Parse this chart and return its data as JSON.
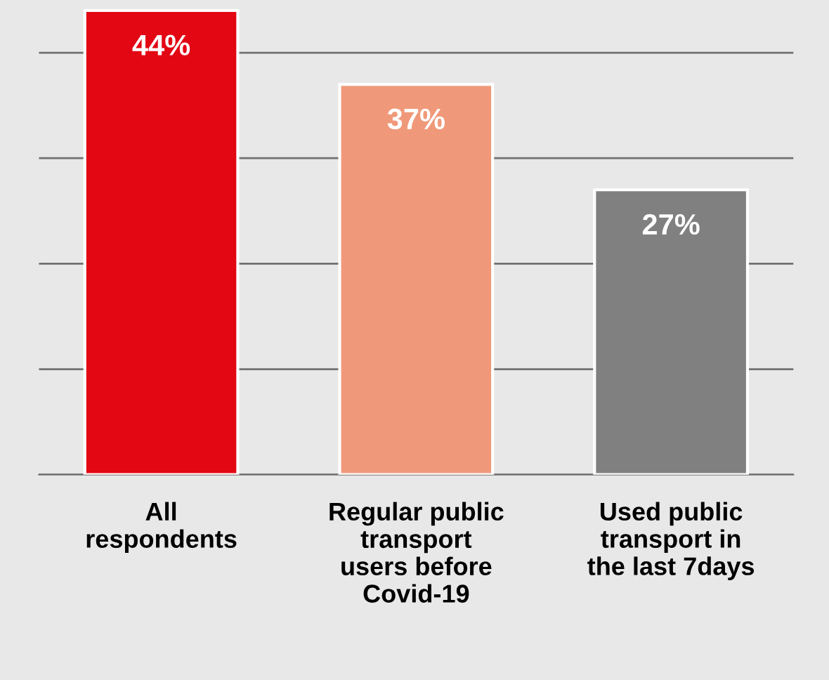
{
  "chart_data": {
    "type": "bar",
    "categories": [
      "All\nrespondents",
      "Regular public\ntransport\nusers before\nCovid-19",
      "Used public\ntransport in\nthe last 7days"
    ],
    "values": [
      44,
      37,
      27
    ],
    "colors": [
      "#e30613",
      "#f0997a",
      "#808080"
    ],
    "value_labels": [
      "44%",
      "37%",
      "27%"
    ],
    "ylim": [
      0,
      45
    ],
    "yticks": [
      {
        "value": 0,
        "label": null
      },
      {
        "value": 10,
        "label": null
      },
      {
        "value": 20,
        "label": null
      },
      {
        "value": 30,
        "label": null
      },
      {
        "value": 40,
        "label": null
      }
    ],
    "grid": "y",
    "tick_labels": "x",
    "legend": false
  }
}
